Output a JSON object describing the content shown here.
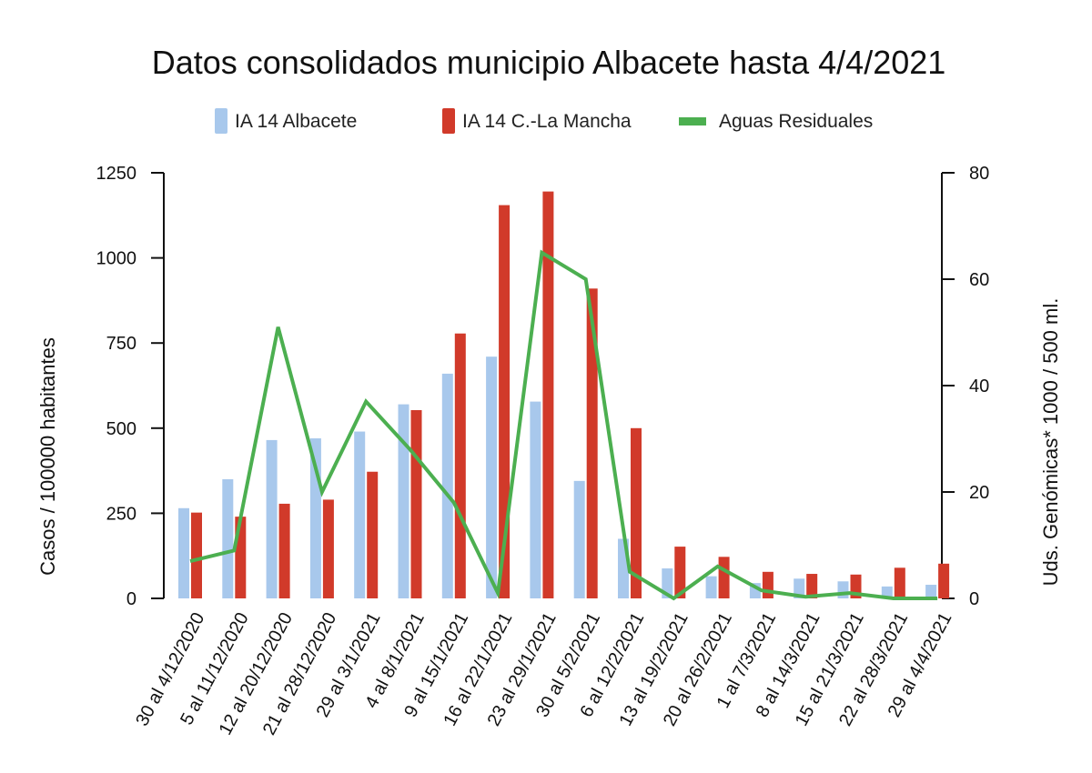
{
  "chart_data": {
    "type": "bar",
    "title": "Datos consolidados municipio Albacete hasta 4/4/2021",
    "ylabel_left": "Casos / 100000 habitantes",
    "ylabel_right": "Uds. Genómicas* 1000 / 500 ml.",
    "ylim_left": [
      0,
      1250
    ],
    "ylim_right": [
      0,
      80
    ],
    "yticks_left": [
      "0",
      "250",
      "500",
      "750",
      "1000",
      "1250"
    ],
    "yticks_right": [
      "0",
      "20",
      "40",
      "60",
      "80"
    ],
    "legend_position": "top",
    "grid": false,
    "categories": [
      "30 al 4/12/2020",
      "5 al 11/12/2020",
      "12 al 20/12/2020",
      "21 al 28/12/2020",
      "29 al 3/1/2021",
      "4 al 8/1/2021",
      "9 al 15/1/2021",
      "16 al 22/1/2021",
      "23 al 29/1/2021",
      "30 al 5/2/2021",
      "6 al 12/2/2021",
      "13 al 19/2/2021",
      "20 al 26/2/2021",
      "1 al 7/3/2021",
      "8 al 14/3/2021",
      "15 al 21/3/2021",
      "22 al 28/3/2021",
      "29 al 4/4/2021"
    ],
    "series": [
      {
        "name": "IA 14 Albacete",
        "kind": "bar",
        "axis": "left",
        "color": "#a8c8ec",
        "values": [
          265,
          350,
          465,
          470,
          490,
          570,
          660,
          710,
          578,
          345,
          175,
          88,
          65,
          45,
          58,
          50,
          35,
          40
        ]
      },
      {
        "name": "IA 14 C.-La Mancha",
        "kind": "bar",
        "axis": "left",
        "color": "#d13a2a",
        "values": [
          252,
          240,
          278,
          290,
          372,
          553,
          778,
          1155,
          1195,
          910,
          500,
          152,
          122,
          78,
          72,
          70,
          90,
          102
        ]
      },
      {
        "name": "Aguas Residuales",
        "kind": "line",
        "axis": "right",
        "color": "#4caf50",
        "values": [
          7,
          9,
          51,
          20,
          37,
          28,
          18,
          1,
          65,
          60,
          5,
          0,
          6,
          1.5,
          0.3,
          1,
          0,
          0
        ]
      }
    ]
  }
}
